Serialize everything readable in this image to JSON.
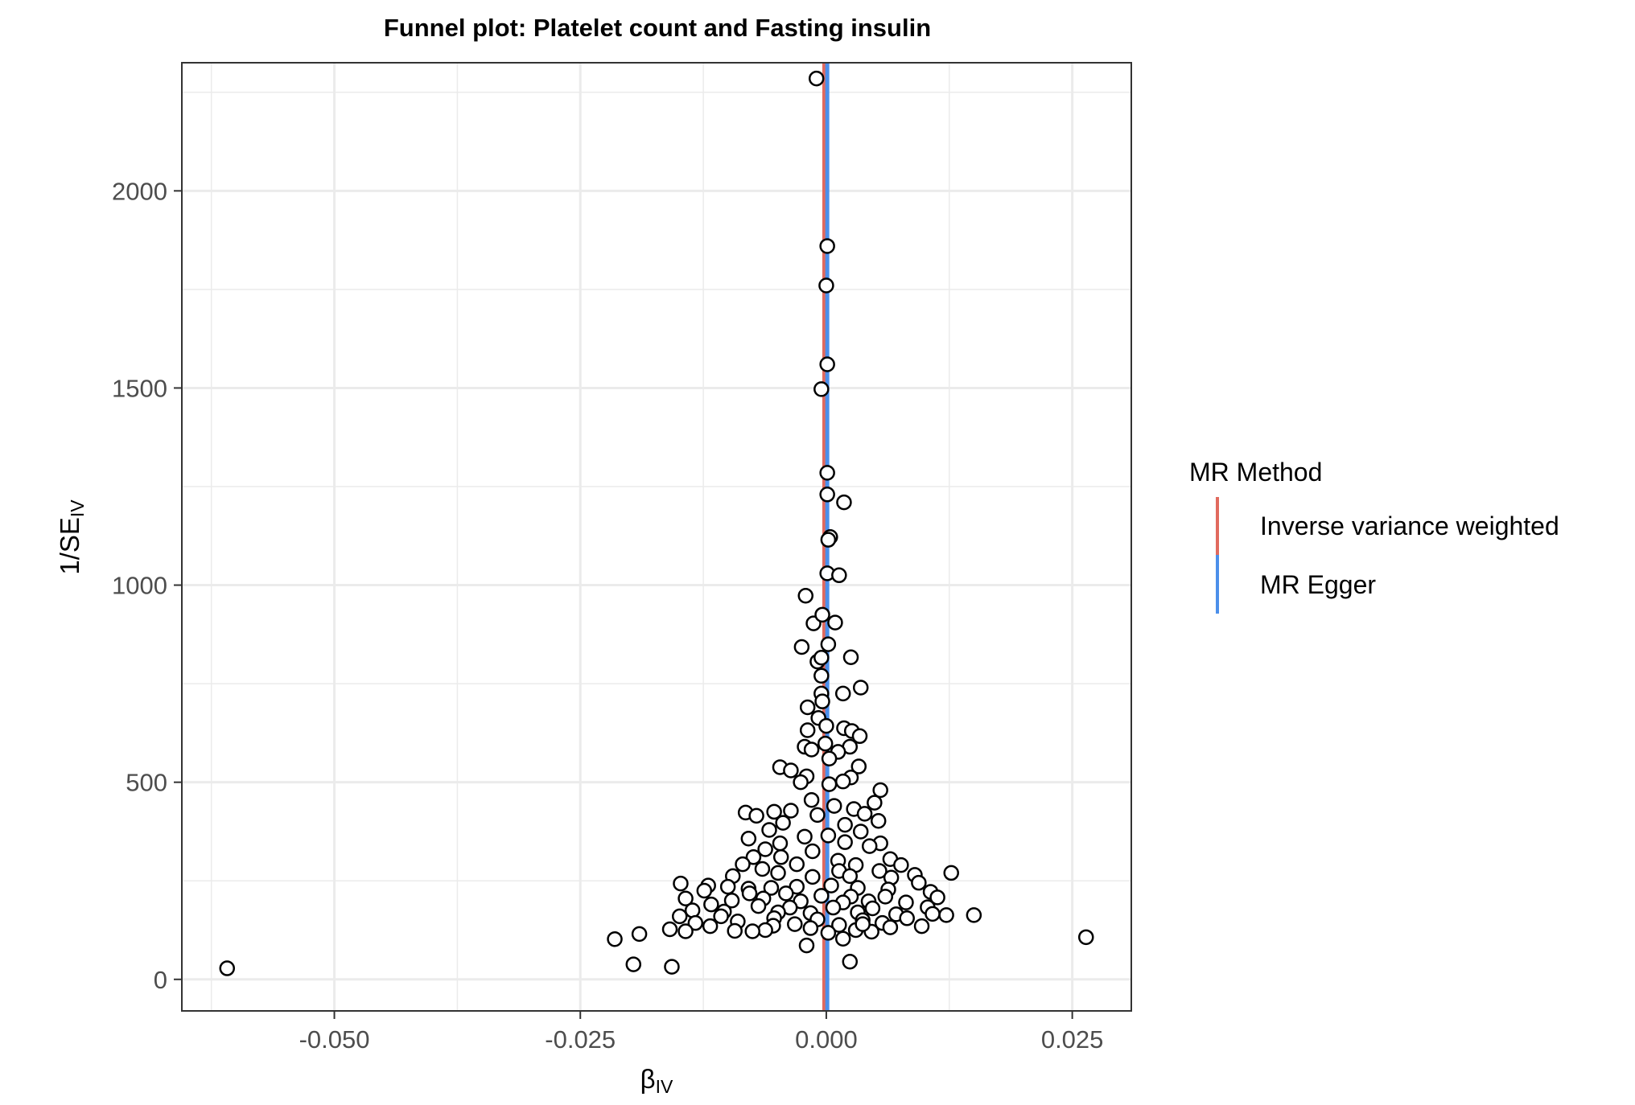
{
  "chart_data": {
    "type": "scatter",
    "title": "Funnel plot: Platelet count and Fasting insulin",
    "xlabel": {
      "main": "β",
      "sub": "IV"
    },
    "ylabel": {
      "main": "1/SE",
      "sub": "IV"
    },
    "xlim": [
      -0.0655,
      0.031
    ],
    "ylim": [
      -80,
      2325
    ],
    "x_ticks": [
      -0.05,
      -0.025,
      0.0,
      0.025
    ],
    "x_tick_labels": [
      "-0.050",
      "-0.025",
      "0.000",
      "0.025"
    ],
    "y_ticks": [
      0,
      500,
      1000,
      1500,
      2000
    ],
    "y_tick_labels": [
      "0",
      "500",
      "1000",
      "1500",
      "2000"
    ],
    "grid": true,
    "legend": {
      "title": "MR Method",
      "position": "right",
      "entries": [
        {
          "name": "Inverse variance weighted",
          "color": "#E16A5E"
        },
        {
          "name": "MR Egger",
          "color": "#4C8FEA"
        }
      ]
    },
    "lines": [
      {
        "method": "Inverse variance weighted",
        "x": -0.0002,
        "color": "#E16A5E"
      },
      {
        "method": "MR Egger",
        "x": 0.0001,
        "color": "#4C8FEA"
      }
    ],
    "points": [
      [
        -0.0609,
        28
      ],
      [
        -0.0215,
        102
      ],
      [
        -0.0196,
        38
      ],
      [
        -0.019,
        115
      ],
      [
        -0.0157,
        32
      ],
      [
        -0.0159,
        127
      ],
      [
        0.0264,
        107
      ],
      [
        0.015,
        163
      ],
      [
        0.0127,
        270
      ],
      [
        -0.001,
        2285
      ],
      [
        0.0001,
        1860
      ],
      [
        0.0,
        1760
      ],
      [
        0.0001,
        1560
      ],
      [
        -0.0005,
        1497
      ],
      [
        0.0001,
        1285
      ],
      [
        0.0001,
        1230
      ],
      [
        0.0018,
        1210
      ],
      [
        0.0004,
        1122
      ],
      [
        0.0002,
        1115
      ],
      [
        0.0001,
        1030
      ],
      [
        0.0013,
        1025
      ],
      [
        -0.0021,
        973
      ],
      [
        0.0009,
        905
      ],
      [
        -0.0013,
        903
      ],
      [
        -0.0004,
        925
      ],
      [
        0.0002,
        850
      ],
      [
        -0.0025,
        843
      ],
      [
        0.0025,
        817
      ],
      [
        -0.0009,
        806
      ],
      [
        -0.0005,
        816
      ],
      [
        -0.0005,
        770
      ],
      [
        0.0035,
        740
      ],
      [
        0.0017,
        725
      ],
      [
        -0.0005,
        725
      ],
      [
        -0.0004,
        705
      ],
      [
        -0.0019,
        690
      ],
      [
        -0.0008,
        663
      ],
      [
        0.0,
        643
      ],
      [
        0.0018,
        637
      ],
      [
        0.0026,
        630
      ],
      [
        -0.0019,
        632
      ],
      [
        0.0034,
        617
      ],
      [
        -0.0022,
        590
      ],
      [
        -0.0015,
        583
      ],
      [
        0.0024,
        590
      ],
      [
        -0.0001,
        598
      ],
      [
        0.0012,
        577
      ],
      [
        0.0003,
        560
      ],
      [
        -0.0047,
        538
      ],
      [
        -0.0036,
        530
      ],
      [
        0.0033,
        540
      ],
      [
        -0.002,
        515
      ],
      [
        0.0025,
        512
      ],
      [
        0.0055,
        480
      ],
      [
        0.0003,
        495
      ],
      [
        -0.0026,
        500
      ],
      [
        0.0017,
        502
      ],
      [
        0.0049,
        448
      ],
      [
        -0.0082,
        423
      ],
      [
        -0.0071,
        415
      ],
      [
        -0.0053,
        425
      ],
      [
        -0.0036,
        428
      ],
      [
        -0.0015,
        455
      ],
      [
        0.0008,
        440
      ],
      [
        0.0028,
        432
      ],
      [
        0.0039,
        420
      ],
      [
        0.0053,
        402
      ],
      [
        -0.0009,
        417
      ],
      [
        -0.0044,
        397
      ],
      [
        0.0019,
        392
      ],
      [
        -0.0058,
        379
      ],
      [
        0.0035,
        375
      ],
      [
        -0.0022,
        362
      ],
      [
        0.0002,
        365
      ],
      [
        -0.0079,
        357
      ],
      [
        -0.0047,
        345
      ],
      [
        0.0019,
        348
      ],
      [
        0.0055,
        345
      ],
      [
        -0.0062,
        330
      ],
      [
        -0.0014,
        325
      ],
      [
        0.0044,
        338
      ],
      [
        -0.0074,
        310
      ],
      [
        -0.0046,
        310
      ],
      [
        0.0012,
        301
      ],
      [
        0.0065,
        305
      ],
      [
        -0.0085,
        292
      ],
      [
        -0.003,
        292
      ],
      [
        0.003,
        290
      ],
      [
        0.0076,
        290
      ],
      [
        -0.0065,
        280
      ],
      [
        0.0013,
        275
      ],
      [
        0.0054,
        275
      ],
      [
        0.009,
        265
      ],
      [
        -0.0095,
        262
      ],
      [
        -0.0049,
        270
      ],
      [
        -0.0014,
        260
      ],
      [
        0.0024,
        262
      ],
      [
        0.0066,
        258
      ],
      [
        0.0094,
        245
      ],
      [
        -0.0148,
        243
      ],
      [
        -0.012,
        238
      ],
      [
        -0.01,
        235
      ],
      [
        -0.0079,
        230
      ],
      [
        -0.0056,
        232
      ],
      [
        -0.003,
        235
      ],
      [
        0.0005,
        238
      ],
      [
        0.0032,
        232
      ],
      [
        0.0063,
        228
      ],
      [
        0.0106,
        222
      ],
      [
        -0.0124,
        225
      ],
      [
        -0.0078,
        218
      ],
      [
        -0.0041,
        218
      ],
      [
        -0.0005,
        212
      ],
      [
        0.0025,
        210
      ],
      [
        0.006,
        210
      ],
      [
        0.0113,
        208
      ],
      [
        -0.0143,
        205
      ],
      [
        -0.0096,
        200
      ],
      [
        -0.0064,
        205
      ],
      [
        -0.0026,
        198
      ],
      [
        0.0017,
        195
      ],
      [
        0.0043,
        198
      ],
      [
        0.0081,
        195
      ],
      [
        -0.0117,
        190
      ],
      [
        -0.0069,
        186
      ],
      [
        -0.0037,
        182
      ],
      [
        0.0007,
        182
      ],
      [
        0.0047,
        180
      ],
      [
        0.0103,
        183
      ],
      [
        -0.0136,
        175
      ],
      [
        -0.0104,
        172
      ],
      [
        -0.0049,
        170
      ],
      [
        -0.0016,
        168
      ],
      [
        0.0032,
        170
      ],
      [
        0.0071,
        165
      ],
      [
        0.0122,
        163
      ],
      [
        -0.0149,
        160
      ],
      [
        -0.0107,
        160
      ],
      [
        -0.0053,
        155
      ],
      [
        -0.0009,
        152
      ],
      [
        0.0037,
        150
      ],
      [
        0.0082,
        155
      ],
      [
        0.0108,
        166
      ],
      [
        -0.0133,
        143
      ],
      [
        -0.009,
        147
      ],
      [
        -0.0032,
        140
      ],
      [
        0.0013,
        138
      ],
      [
        0.0057,
        143
      ],
      [
        0.0097,
        135
      ],
      [
        -0.0143,
        122
      ],
      [
        -0.0093,
        123
      ],
      [
        -0.0054,
        136
      ],
      [
        -0.0016,
        130
      ],
      [
        0.003,
        125
      ],
      [
        0.0065,
        132
      ],
      [
        -0.0118,
        135
      ],
      [
        -0.0062,
        125
      ],
      [
        -0.0075,
        122
      ],
      [
        0.0002,
        118
      ],
      [
        0.0046,
        121
      ],
      [
        -0.002,
        86
      ],
      [
        0.0017,
        103
      ],
      [
        0.0024,
        45
      ],
      [
        0.0037,
        140
      ]
    ]
  }
}
